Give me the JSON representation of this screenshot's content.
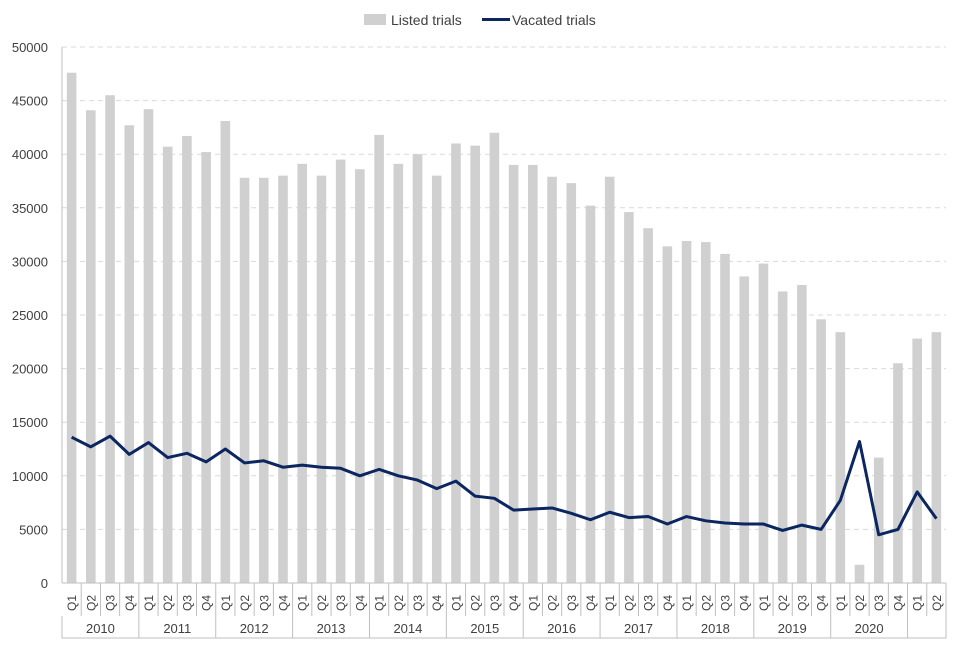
{
  "chart_data": {
    "type": "bar",
    "legend_position": "top-center",
    "grid": "horizontal-dashed",
    "ylim": [
      0,
      50000
    ],
    "yticks": [
      0,
      5000,
      10000,
      15000,
      20000,
      25000,
      30000,
      35000,
      40000,
      45000,
      50000
    ],
    "ytick_labels": [
      "0",
      "5000",
      "10000",
      "15000",
      "20000",
      "25000",
      "30000",
      "35000",
      "40000",
      "45000",
      "50000"
    ],
    "quarters": [
      "Q1",
      "Q2",
      "Q3",
      "Q4",
      "Q1",
      "Q2",
      "Q3",
      "Q4",
      "Q1",
      "Q2",
      "Q3",
      "Q4",
      "Q1",
      "Q2",
      "Q3",
      "Q4",
      "Q1",
      "Q2",
      "Q3",
      "Q4",
      "Q1",
      "Q2",
      "Q3",
      "Q4",
      "Q1",
      "Q2",
      "Q3",
      "Q4",
      "Q1",
      "Q2",
      "Q3",
      "Q4",
      "Q1",
      "Q2",
      "Q3",
      "Q4",
      "Q1",
      "Q2",
      "Q3",
      "Q4",
      "Q1",
      "Q2",
      "Q3",
      "Q4",
      "Q1",
      "Q2"
    ],
    "years": [
      {
        "label": "2010",
        "start": 0,
        "count": 4
      },
      {
        "label": "2011",
        "start": 4,
        "count": 4
      },
      {
        "label": "2012",
        "start": 8,
        "count": 4
      },
      {
        "label": "2013",
        "start": 12,
        "count": 4
      },
      {
        "label": "2014",
        "start": 16,
        "count": 4
      },
      {
        "label": "2015",
        "start": 20,
        "count": 4
      },
      {
        "label": "2016",
        "start": 24,
        "count": 4
      },
      {
        "label": "2017",
        "start": 28,
        "count": 4
      },
      {
        "label": "2018",
        "start": 32,
        "count": 4
      },
      {
        "label": "2019",
        "start": 36,
        "count": 4
      },
      {
        "label": "2020",
        "start": 40,
        "count": 4
      },
      {
        "label": "",
        "start": 44,
        "count": 2
      }
    ],
    "series": [
      {
        "name": "Listed trials",
        "type": "bar",
        "color": "#d0d0d0",
        "values": [
          47600,
          44100,
          45500,
          42700,
          44200,
          40700,
          41700,
          40200,
          43100,
          37800,
          37800,
          38000,
          39100,
          38000,
          39500,
          38600,
          41800,
          39100,
          40000,
          38000,
          41000,
          40800,
          42000,
          39000,
          39000,
          37900,
          37300,
          35200,
          37900,
          34600,
          33100,
          31400,
          31900,
          31800,
          30700,
          28600,
          29800,
          27200,
          27800,
          24600,
          23400,
          1700,
          11700,
          20500,
          22800,
          23400
        ]
      },
      {
        "name": "Vacated trials",
        "type": "line",
        "color": "#0b2660",
        "values": [
          13600,
          12700,
          13700,
          12000,
          13100,
          11700,
          12100,
          11300,
          12500,
          11200,
          11400,
          10800,
          11000,
          10800,
          10700,
          10000,
          10600,
          10000,
          9600,
          8800,
          9500,
          8100,
          7900,
          6800,
          6900,
          7000,
          6500,
          5900,
          6600,
          6100,
          6200,
          5500,
          6200,
          5800,
          5600,
          5500,
          5500,
          4900,
          5400,
          5000,
          7700,
          13200,
          4500,
          5000,
          8500,
          6000
        ]
      }
    ]
  }
}
